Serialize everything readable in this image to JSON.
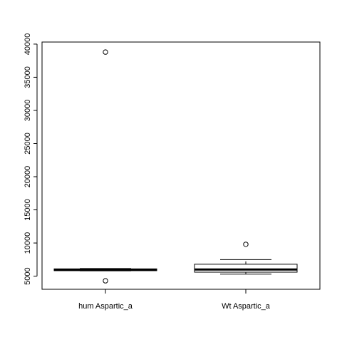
{
  "chart_data": {
    "type": "boxplot",
    "title": "",
    "xlabel": "",
    "ylabel": "",
    "ylim": [
      3000,
      41000
    ],
    "yticks": [
      5000,
      10000,
      15000,
      20000,
      25000,
      30000,
      35000,
      40000
    ],
    "ytick_labels": [
      "5000",
      "10000",
      "15000",
      "20000",
      "25000",
      "30000",
      "35000",
      "40000"
    ],
    "categories": [
      "hum Aspartic_a",
      "Wt Aspartic_a"
    ],
    "boxes": [
      {
        "name": "hum Aspartic_a",
        "whisker_low": 5800,
        "q1": 5830,
        "median": 5950,
        "q3": 6100,
        "whisker_high": 6150,
        "outliers": [
          38800,
          4300
        ]
      },
      {
        "name": "Wt Aspartic_a",
        "whisker_low": 5300,
        "q1": 5600,
        "median": 6000,
        "q3": 6800,
        "whisker_high": 7500,
        "outliers": [
          9800
        ]
      }
    ]
  }
}
